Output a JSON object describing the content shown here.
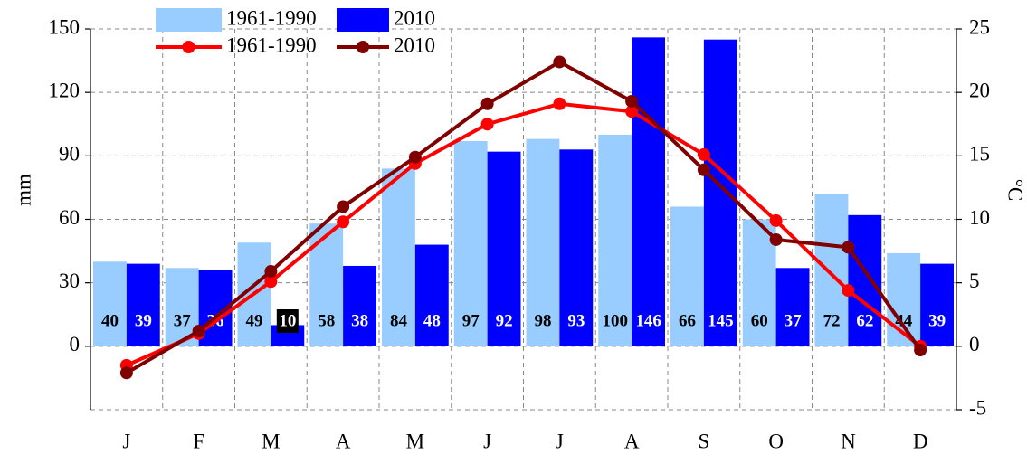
{
  "chart_data": {
    "type": "bar",
    "categories": [
      "J",
      "F",
      "M",
      "A",
      "M",
      "J",
      "J",
      "A",
      "S",
      "O",
      "N",
      "D"
    ],
    "ylabel": "mm",
    "y2label": "°C",
    "ylim": [
      -30,
      150
    ],
    "yticks": [
      0,
      30,
      60,
      90,
      120,
      150
    ],
    "y2lim": [
      -5,
      25
    ],
    "y2ticks": [
      -5,
      0,
      5,
      10,
      15,
      20,
      25
    ],
    "grid": true,
    "legend": "upper left",
    "series": [
      {
        "name": "1961-1990",
        "type": "bar",
        "color": "#99ccff",
        "values": [
          40,
          37,
          49,
          58,
          84,
          97,
          98,
          100,
          66,
          60,
          72,
          44
        ]
      },
      {
        "name": "2010",
        "type": "bar",
        "color": "#0000ff",
        "values": [
          39,
          36,
          10,
          38,
          48,
          92,
          93,
          146,
          145,
          37,
          62,
          39
        ]
      },
      {
        "name": "1961-1990",
        "type": "line",
        "axis": "y2",
        "color": "#ff0000",
        "values": [
          -1.5,
          1.0,
          5.1,
          9.8,
          14.4,
          17.5,
          19.1,
          18.5,
          15.1,
          9.9,
          4.4,
          0.0
        ]
      },
      {
        "name": "2010",
        "type": "line",
        "axis": "y2",
        "color": "#800000",
        "values": [
          -2.1,
          1.2,
          5.9,
          11.0,
          14.9,
          19.1,
          22.4,
          19.3,
          13.9,
          8.4,
          7.8,
          -0.3
        ]
      }
    ]
  }
}
